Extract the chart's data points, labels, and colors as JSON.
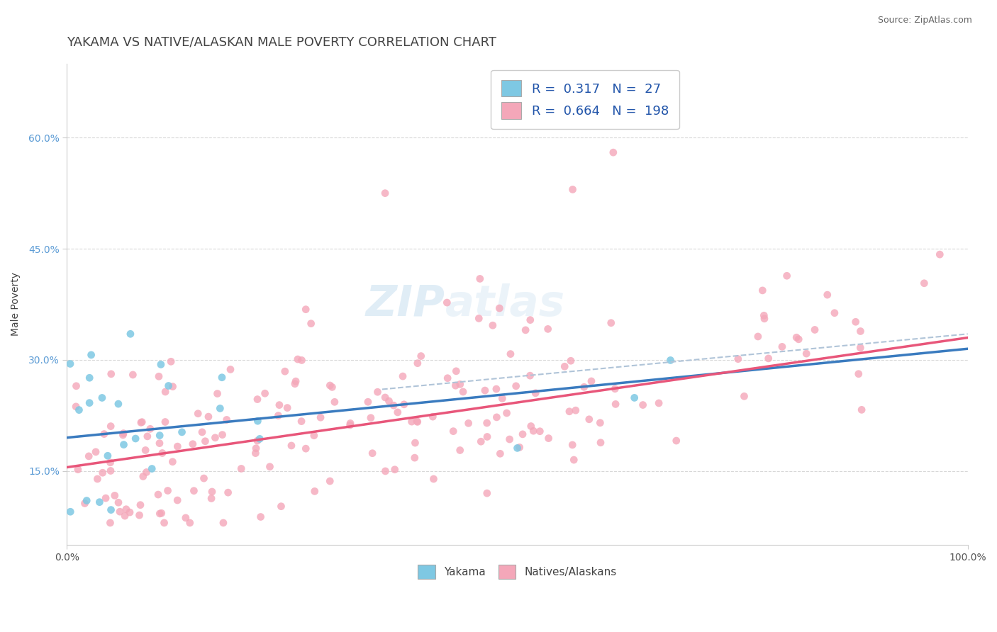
{
  "title": "YAKAMA VS NATIVE/ALASKAN MALE POVERTY CORRELATION CHART",
  "source": "Source: ZipAtlas.com",
  "ylabel": "Male Poverty",
  "xlim": [
    0,
    1.0
  ],
  "ylim": [
    0.05,
    0.7
  ],
  "yticks": [
    0.15,
    0.3,
    0.45,
    0.6
  ],
  "ytick_labels": [
    "15.0%",
    "30.0%",
    "45.0%",
    "60.0%"
  ],
  "xticks": [
    0.0,
    1.0
  ],
  "xtick_labels": [
    "0.0%",
    "100.0%"
  ],
  "R_yakama": 0.317,
  "N_yakama": 27,
  "R_native": 0.664,
  "N_native": 198,
  "color_yakama": "#7ec8e3",
  "color_native": "#f4a7b9",
  "trendline_yakama": "#3a7bbf",
  "trendline_native": "#e8567a",
  "trendline_dashed": "#b0c4d8",
  "background_color": "#ffffff",
  "grid_color": "#d8d8d8",
  "title_color": "#444444",
  "watermark": "ZIPatlas",
  "title_fontsize": 13,
  "axis_label_fontsize": 10,
  "legend_fontsize": 13,
  "yakama_intercept": 0.195,
  "yakama_slope": 0.12,
  "native_intercept": 0.155,
  "native_slope": 0.175,
  "dashed_intercept": 0.22,
  "dashed_slope": 0.115
}
